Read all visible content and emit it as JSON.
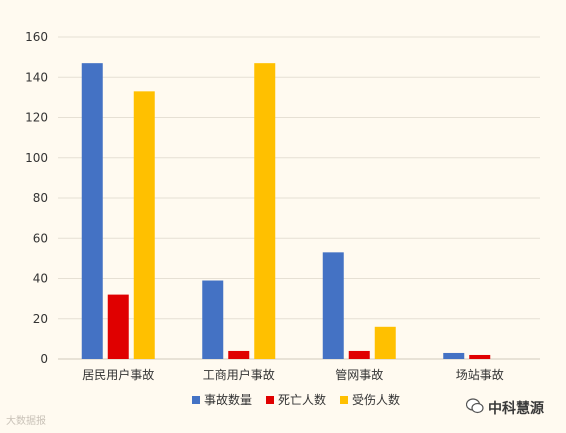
{
  "chart_data": {
    "type": "bar",
    "categories": [
      "居民用户事故",
      "工商用户事故",
      "管网事故",
      "场站事故"
    ],
    "series": [
      {
        "name": "事故数量",
        "values": [
          147,
          39,
          53,
          3
        ],
        "color": "#4472c4"
      },
      {
        "name": "死亡人数",
        "values": [
          32,
          4,
          4,
          2
        ],
        "color": "#e00000"
      },
      {
        "name": "受伤人数",
        "values": [
          133,
          147,
          16,
          0
        ],
        "color": "#ffc000"
      }
    ],
    "ylim": [
      0,
      160
    ],
    "yticks": [
      0,
      20,
      40,
      60,
      80,
      100,
      120,
      140,
      160
    ],
    "grid": true,
    "legend_position": "bottom"
  },
  "watermarks": {
    "left_text": "大数据报",
    "right_text": "中科慧源",
    "right_icon": "wechat-icon"
  },
  "colors": {
    "background": "#fffaf0",
    "grid": "#e6e0d4",
    "axis_text": "#333333"
  }
}
